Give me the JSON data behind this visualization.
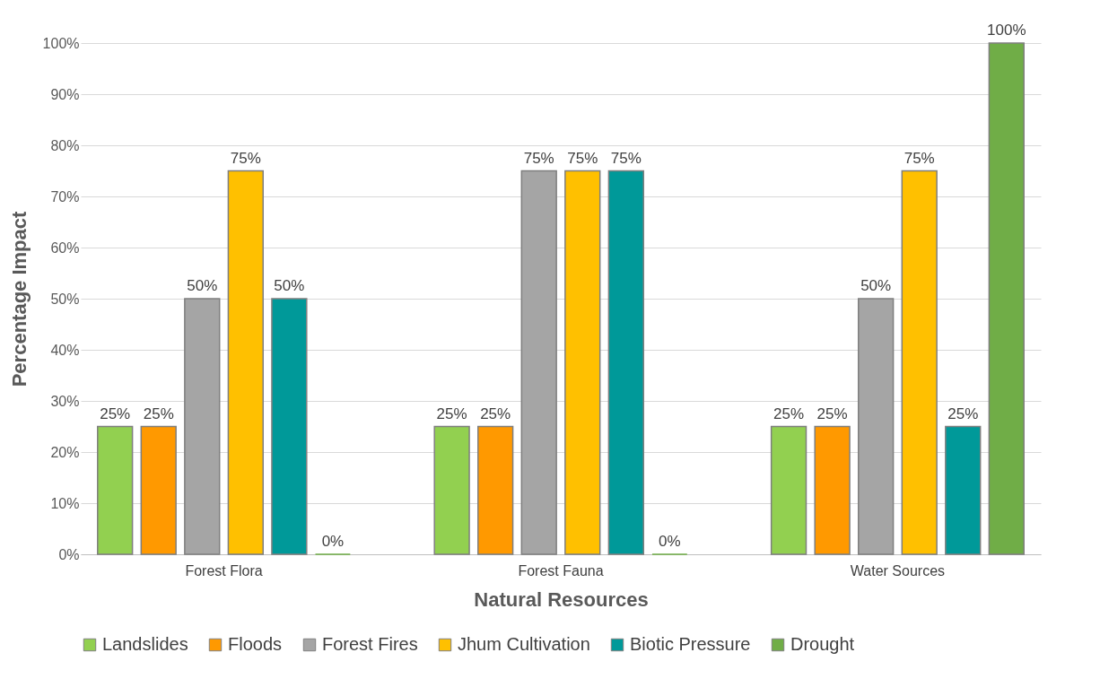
{
  "chart_data": {
    "type": "bar",
    "xlabel": "Natural Resources",
    "ylabel": "Percentage Impact",
    "categories": [
      "Forest Flora",
      "Forest Fauna",
      "Water Sources"
    ],
    "series": [
      {
        "name": "Landslides",
        "color": "#92d050",
        "values": [
          25,
          25,
          25
        ],
        "value_labels": [
          "25%",
          "25%",
          "25%"
        ]
      },
      {
        "name": "Floods",
        "color": "#ff9900",
        "values": [
          25,
          25,
          25
        ],
        "value_labels": [
          "25%",
          "25%",
          "25%"
        ]
      },
      {
        "name": "Forest Fires",
        "color": "#a5a5a5",
        "values": [
          50,
          75,
          50
        ],
        "value_labels": [
          "50%",
          "75%",
          "50%"
        ]
      },
      {
        "name": "Jhum Cultivation",
        "color": "#ffc000",
        "values": [
          75,
          75,
          75
        ],
        "value_labels": [
          "75%",
          "75%",
          "75%"
        ]
      },
      {
        "name": "Biotic Pressure",
        "color": "#009999",
        "values": [
          50,
          75,
          25
        ],
        "value_labels": [
          "50%",
          "75%",
          "25%"
        ]
      },
      {
        "name": "Drought",
        "color": "#70ad47",
        "values": [
          0,
          0,
          100
        ],
        "value_labels": [
          "0%",
          "0%",
          "100%"
        ]
      }
    ],
    "ylim": [
      0,
      100
    ],
    "yticks": [
      {
        "value": 0,
        "label": "0%"
      },
      {
        "value": 10,
        "label": "10%"
      },
      {
        "value": 20,
        "label": "20%"
      },
      {
        "value": 30,
        "label": "30%"
      },
      {
        "value": 40,
        "label": "40%"
      },
      {
        "value": 50,
        "label": "50%"
      },
      {
        "value": 60,
        "label": "60%"
      },
      {
        "value": 70,
        "label": "70%"
      },
      {
        "value": 80,
        "label": "80%"
      },
      {
        "value": 90,
        "label": "90%"
      },
      {
        "value": 100,
        "label": "100%"
      }
    ],
    "grid": "y",
    "legend": "bottom"
  }
}
